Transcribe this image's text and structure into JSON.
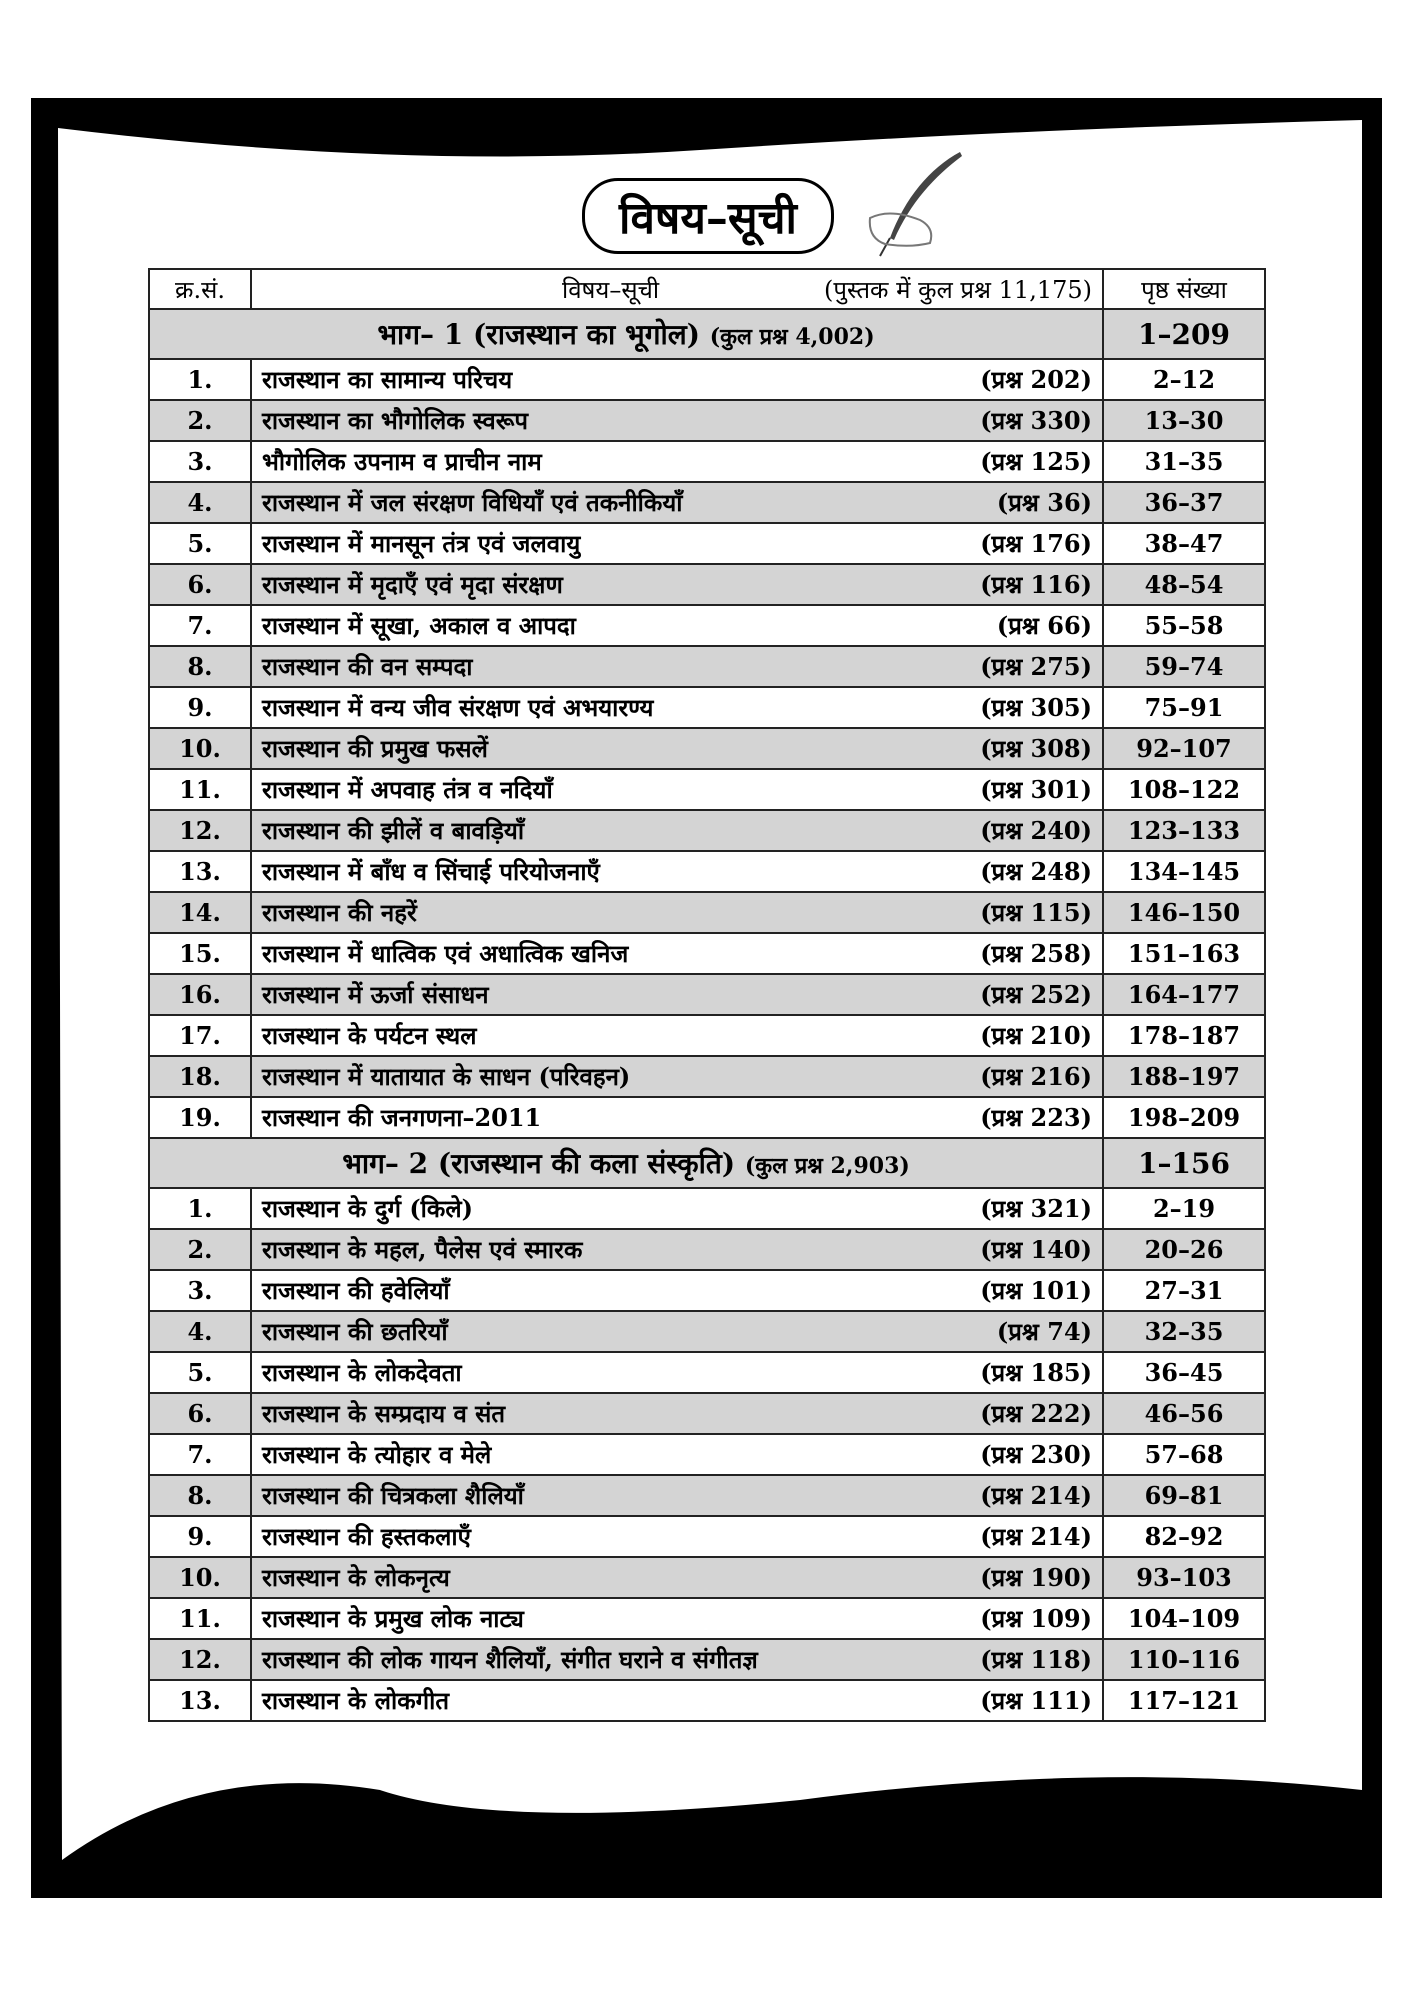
{
  "title": "विषय–सूची",
  "header": {
    "serial": "क्र.सं.",
    "subject": "विषय–सूची",
    "total": "(पुस्तक में कुल प्रश्न 11,175)",
    "pages": "पृष्ठ संख्या"
  },
  "colors": {
    "shade": "#d4d4d4",
    "frame": "#000000"
  },
  "icons": {
    "decoration": "quill-pen-hand-icon"
  },
  "parts": [
    {
      "title": "भाग– 1 (राजस्थान का भूगोल)",
      "total": "(कुल प्रश्न 4,002)",
      "pages": "1–209",
      "rows": [
        [
          "1.",
          "राजस्थान का सामान्य परिचय",
          "(प्रश्न 202)",
          "2–12"
        ],
        [
          "2.",
          "राजस्थान का भौगोलिक स्वरूप",
          "(प्रश्न 330)",
          "13–30"
        ],
        [
          "3.",
          "भौगोलिक उपनाम व प्राचीन नाम",
          "(प्रश्न 125)",
          "31–35"
        ],
        [
          "4.",
          "राजस्थान में जल संरक्षण विधियाँ एवं तकनीकियाँ",
          "(प्रश्न 36)",
          "36–37"
        ],
        [
          "5.",
          "राजस्थान में मानसून तंत्र एवं जलवायु",
          "(प्रश्न 176)",
          "38–47"
        ],
        [
          "6.",
          "राजस्थान में मृदाएँ एवं मृदा संरक्षण",
          "(प्रश्न 116)",
          "48–54"
        ],
        [
          "7.",
          "राजस्थान में सूखा, अकाल व आपदा",
          "(प्रश्न 66)",
          "55–58"
        ],
        [
          "8.",
          "राजस्थान की वन सम्पदा",
          "(प्रश्न 275)",
          "59–74"
        ],
        [
          "9.",
          "राजस्थान में वन्य जीव संरक्षण एवं अभयारण्य",
          "(प्रश्न 305)",
          "75–91"
        ],
        [
          "10.",
          "राजस्थान की प्रमुख फसलें",
          "(प्रश्न 308)",
          "92–107"
        ],
        [
          "11.",
          "राजस्थान में अपवाह तंत्र व नदियाँ",
          "(प्रश्न 301)",
          "108–122"
        ],
        [
          "12.",
          "राजस्थान की झीलें व बावड़ियाँ",
          "(प्रश्न 240)",
          "123–133"
        ],
        [
          "13.",
          "राजस्थान में बाँध व सिंचाई परियोजनाएँ",
          "(प्रश्न 248)",
          "134–145"
        ],
        [
          "14.",
          "राजस्थान की नहरें",
          "(प्रश्न 115)",
          "146–150"
        ],
        [
          "15.",
          "राजस्थान में धात्विक एवं अधात्विक खनिज",
          "(प्रश्न 258)",
          "151–163"
        ],
        [
          "16.",
          "राजस्थान में ऊर्जा संसाधन",
          "(प्रश्न 252)",
          "164–177"
        ],
        [
          "17.",
          "राजस्थान के पर्यटन स्थल",
          "(प्रश्न 210)",
          "178–187"
        ],
        [
          "18.",
          "राजस्थान में यातायात के साधन (परिवहन)",
          "(प्रश्न 216)",
          "188–197"
        ],
        [
          "19.",
          "राजस्थान की जनगणना–2011",
          "(प्रश्न 223)",
          "198–209"
        ]
      ]
    },
    {
      "title": "भाग– 2 (राजस्थान की कला संस्कृति)",
      "total": "(कुल प्रश्न 2,903)",
      "pages": "1–156",
      "rows": [
        [
          "1.",
          "राजस्थान के दुर्ग (किले)",
          "(प्रश्न 321)",
          "2–19"
        ],
        [
          "2.",
          "राजस्थान के महल, पैलेस एवं स्मारक",
          "(प्रश्न 140)",
          "20–26"
        ],
        [
          "3.",
          "राजस्थान की हवेलियाँ",
          "(प्रश्न 101)",
          "27–31"
        ],
        [
          "4.",
          "राजस्थान की छतरियाँ",
          "(प्रश्न 74)",
          "32–35"
        ],
        [
          "5.",
          "राजस्थान के लोकदेवता",
          "(प्रश्न 185)",
          "36–45"
        ],
        [
          "6.",
          "राजस्थान के सम्प्रदाय व संत",
          "(प्रश्न 222)",
          "46–56"
        ],
        [
          "7.",
          "राजस्थान के त्योहार व मेले",
          "(प्रश्न 230)",
          "57–68"
        ],
        [
          "8.",
          "राजस्थान की चित्रकला शैलियाँ",
          "(प्रश्न 214)",
          "69–81"
        ],
        [
          "9.",
          "राजस्थान की हस्तकलाएँ",
          "(प्रश्न 214)",
          "82–92"
        ],
        [
          "10.",
          "राजस्थान के लोकनृत्य",
          "(प्रश्न 190)",
          "93–103"
        ],
        [
          "11.",
          "राजस्थान के प्रमुख लोक नाट्य",
          "(प्रश्न 109)",
          "104–109"
        ],
        [
          "12.",
          "राजस्थान की लोक गायन शैलियाँ, संगीत घराने व संगीतज्ञ",
          "(प्रश्न 118)",
          "110–116"
        ],
        [
          "13.",
          "राजस्थान के लोकगीत",
          "(प्रश्न 111)",
          "117–121"
        ]
      ]
    }
  ]
}
